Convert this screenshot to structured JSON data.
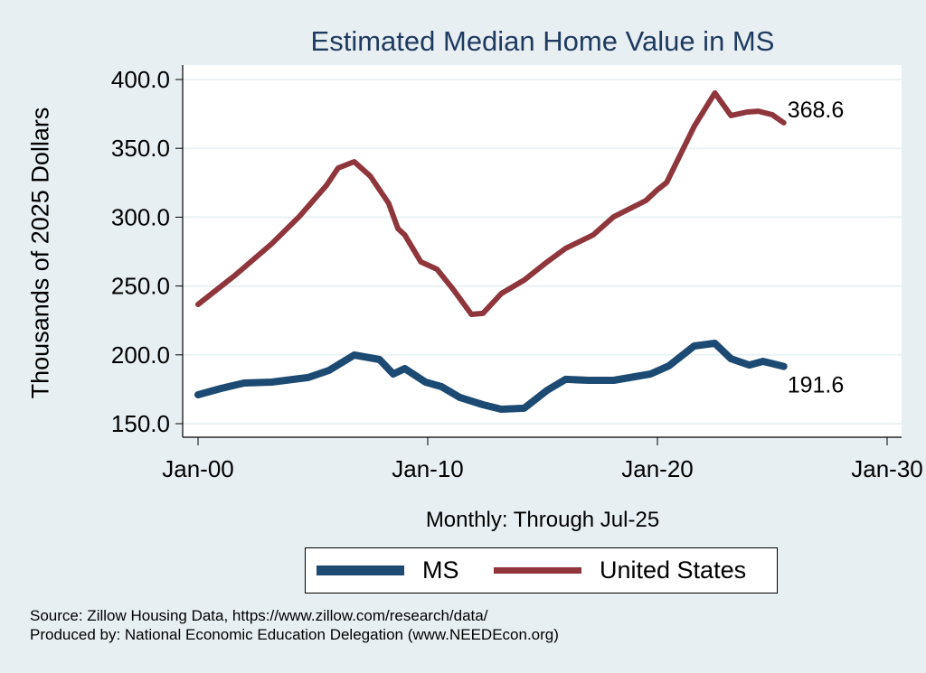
{
  "chart_data": {
    "type": "line",
    "title": "Estimated Median Home Value in MS",
    "xlabel": "Monthly: Through Jul-25",
    "ylabel": "Thousands of 2025 Dollars",
    "ylim": [
      145,
      405
    ],
    "xlim": [
      1999.4,
      2030.6
    ],
    "yticks": [
      150,
      200,
      250,
      300,
      350,
      400
    ],
    "ytick_labels": [
      "150.0",
      "200.0",
      "250.0",
      "300.0",
      "350.0",
      "400.0"
    ],
    "xticks": [
      2000,
      2010,
      2020,
      2030
    ],
    "xtick_labels": [
      "Jan-00",
      "Jan-10",
      "Jan-20",
      "Jan-30"
    ],
    "grid": true,
    "legend_position": "bottom",
    "series": [
      {
        "name": "MS",
        "color": "#1c4a72",
        "end_label": "191.6",
        "x": [
          2000.0,
          2001.0,
          2002.0,
          2003.2,
          2004.8,
          2005.7,
          2006.8,
          2007.9,
          2008.5,
          2009.0,
          2009.9,
          2010.6,
          2011.4,
          2012.4,
          2013.2,
          2014.2,
          2015.2,
          2016.0,
          2017.0,
          2018.1,
          2019.7,
          2020.5,
          2021.6,
          2022.5,
          2023.2,
          2024.0,
          2024.6,
          2025.5
        ],
        "values": [
          171.0,
          175.6,
          179.5,
          180.2,
          183.5,
          188.7,
          199.9,
          196.6,
          186.1,
          190.0,
          180.2,
          176.9,
          169.0,
          163.8,
          160.5,
          161.2,
          174.3,
          182.2,
          181.5,
          181.5,
          186.1,
          192.0,
          206.4,
          208.4,
          197.2,
          192.6,
          195.3,
          191.6
        ]
      },
      {
        "name": "United States",
        "color": "#8f363c",
        "end_label": "368.6",
        "x": [
          2000.0,
          2001.6,
          2003.2,
          2004.4,
          2005.6,
          2006.1,
          2006.8,
          2007.5,
          2008.3,
          2008.7,
          2009.0,
          2009.7,
          2010.4,
          2011.1,
          2011.9,
          2012.4,
          2013.2,
          2014.2,
          2015.2,
          2016.0,
          2017.2,
          2018.1,
          2019.5,
          2020.0,
          2020.4,
          2021.6,
          2022.5,
          2023.2,
          2023.9,
          2024.4,
          2025.0,
          2025.5
        ],
        "values": [
          236.6,
          257.6,
          280.6,
          300.3,
          323.2,
          335.7,
          340.3,
          329.8,
          310.1,
          291.7,
          287.1,
          267.5,
          262.2,
          247.8,
          229.4,
          230.1,
          244.5,
          254.3,
          267.5,
          277.3,
          287.1,
          300.3,
          312.1,
          319.9,
          325.2,
          365.9,
          390.2,
          373.8,
          376.4,
          377.0,
          374.4,
          368.6
        ]
      }
    ]
  },
  "notes": {
    "source": "Source: Zillow Housing Data, https://www.zillow.com/research/data/",
    "produced_by": "Produced by: National Economic Education Delegation (www.NEEDEcon.org)"
  }
}
